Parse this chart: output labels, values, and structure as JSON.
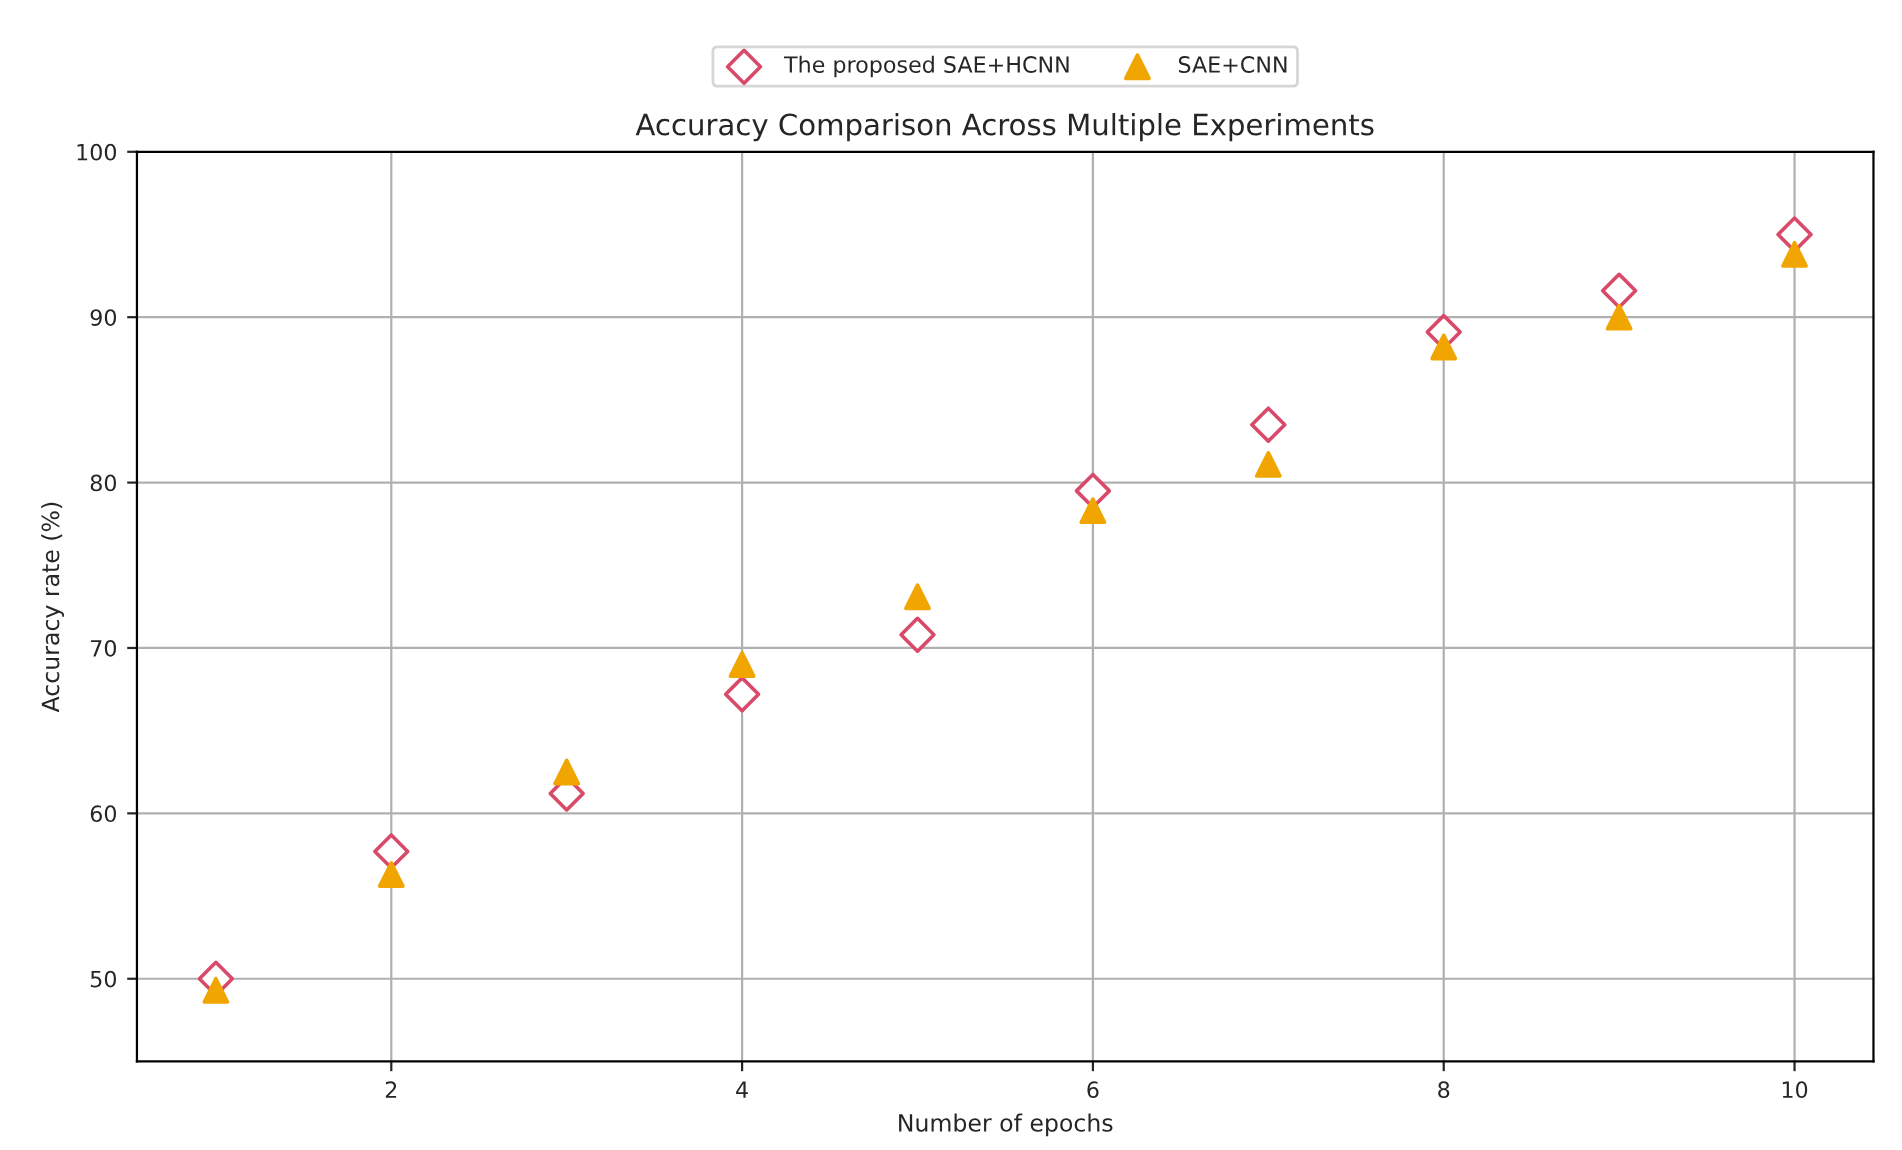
{
  "chart_data": {
    "type": "scatter",
    "title": "Accuracy Comparison Across Multiple Experiments",
    "xlabel": "Number of epochs",
    "ylabel": "Accuracy rate (%)",
    "x": [
      1,
      2,
      3,
      4,
      5,
      6,
      7,
      8,
      9,
      10
    ],
    "series": [
      {
        "name": "The proposed SAE+HCNN",
        "color": "#d94a6a",
        "marker": "diamond",
        "values": [
          50.0,
          57.7,
          61.2,
          67.2,
          70.8,
          79.5,
          83.5,
          89.1,
          91.6,
          95.0
        ]
      },
      {
        "name": "SAE+CNN",
        "color": "#f0a500",
        "marker": "triangle",
        "values": [
          49.3,
          56.3,
          62.5,
          69.0,
          73.1,
          78.3,
          81.1,
          88.2,
          90.0,
          93.8
        ]
      }
    ],
    "xlim": [
      0.55,
      10.45
    ],
    "xticks": [
      2,
      4,
      6,
      8,
      10
    ],
    "ylim": [
      45,
      100
    ],
    "yticks": [
      50,
      60,
      70,
      80,
      90,
      100
    ],
    "grid": true,
    "legend": "top"
  }
}
